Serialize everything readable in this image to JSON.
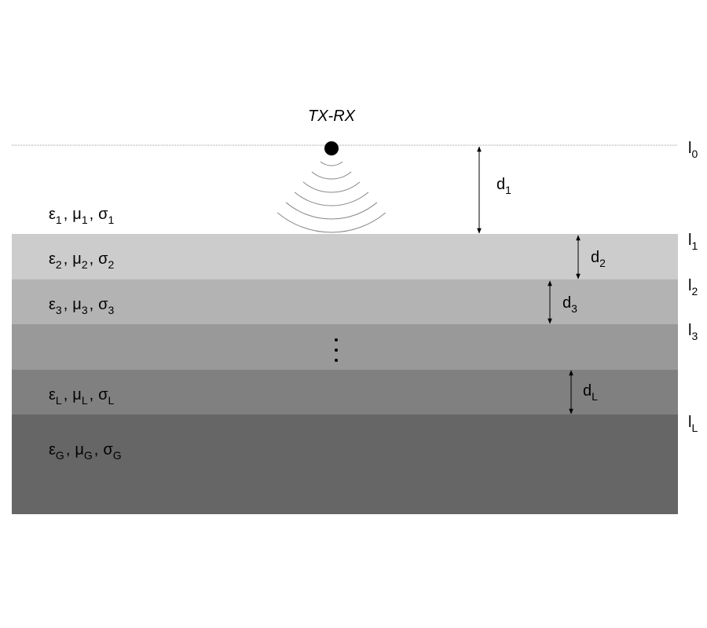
{
  "transceiver": {
    "label": "TX-RX"
  },
  "separator": ",",
  "interfaces": [
    {
      "symbol": "l",
      "sub": "0"
    },
    {
      "symbol": "l",
      "sub": "1"
    },
    {
      "symbol": "l",
      "sub": "2"
    },
    {
      "symbol": "l",
      "sub": "3"
    },
    {
      "symbol": "l",
      "sub": "L"
    }
  ],
  "thicknesses": [
    {
      "symbol": "d",
      "sub": "1"
    },
    {
      "symbol": "d",
      "sub": "2"
    },
    {
      "symbol": "d",
      "sub": "3"
    },
    {
      "symbol": "d",
      "sub": "L"
    }
  ],
  "layers": [
    {
      "params": [
        {
          "symbol": "ε",
          "sub": "1"
        },
        {
          "symbol": "μ",
          "sub": "1"
        },
        {
          "symbol": "σ",
          "sub": "1"
        }
      ]
    },
    {
      "params": [
        {
          "symbol": "ε",
          "sub": "2"
        },
        {
          "symbol": "μ",
          "sub": "2"
        },
        {
          "symbol": "σ",
          "sub": "2"
        }
      ]
    },
    {
      "params": [
        {
          "symbol": "ε",
          "sub": "3"
        },
        {
          "symbol": "μ",
          "sub": "3"
        },
        {
          "symbol": "σ",
          "sub": "3"
        }
      ]
    },
    {
      "params": [
        {
          "symbol": "ε",
          "sub": "L"
        },
        {
          "symbol": "μ",
          "sub": "L"
        },
        {
          "symbol": "σ",
          "sub": "L"
        }
      ]
    },
    {
      "params": [
        {
          "symbol": "ε",
          "sub": "G"
        },
        {
          "symbol": "μ",
          "sub": "G"
        },
        {
          "symbol": "σ",
          "sub": "G"
        }
      ]
    }
  ]
}
